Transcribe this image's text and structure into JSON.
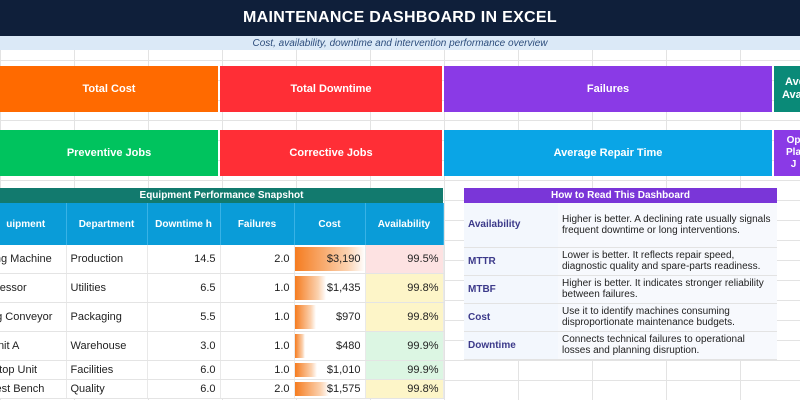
{
  "title": "MAINTENANCE DASHBOARD IN EXCEL",
  "subtitle": "Cost, availability, downtime and intervention performance overview",
  "colors": {
    "title_bg": "#0f1f3a",
    "subtitle_bg": "#dbe9f7",
    "kpi_orange": "#ff6a00",
    "kpi_red": "#ff2e36",
    "kpi_purple": "#8a3ae6",
    "kpi_green": "#00c35e",
    "kpi_blue": "#0aa5e6",
    "kpi_teal": "#0a8a78",
    "table_header": "#0a9cd8",
    "panel_equipment": "#127a6e",
    "panel_guide": "#7a36d8"
  },
  "kpis_row1": [
    "Total Cost",
    "Total Downtime",
    "Failures",
    "Ave\nAvail"
  ],
  "kpis_row2": [
    "Preventive Jobs",
    "Corrective Jobs",
    "Average Repair Time",
    "Op\nPla\nJ"
  ],
  "equipment_panel": {
    "title": "Equipment Performance Snapshot",
    "headers": [
      "uipment",
      "Department",
      "Downtime h",
      "Failures",
      "Cost",
      "Availability"
    ],
    "rows": [
      {
        "equipment": "ling Machine",
        "department": "Production",
        "downtime": "14.5",
        "failures": "2.0",
        "cost": "$3,190",
        "availability": "99.5%"
      },
      {
        "equipment": "pressor",
        "department": "Utilities",
        "downtime": "6.5",
        "failures": "1.0",
        "cost": "$1,435",
        "availability": "99.8%"
      },
      {
        "equipment": "ng Conveyor",
        "department": "Packaging",
        "downtime": "5.5",
        "failures": "1.0",
        "cost": "$970",
        "availability": "99.8%"
      },
      {
        "equipment": "Unit A",
        "department": "Warehouse",
        "downtime": "3.0",
        "failures": "1.0",
        "cost": "$480",
        "availability": "99.9%"
      },
      {
        "equipment": "oftop Unit",
        "department": "Facilities",
        "downtime": "6.0",
        "failures": "1.0",
        "cost": "$1,010",
        "availability": "99.9%"
      },
      {
        "equipment": "Test Bench",
        "department": "Quality",
        "downtime": "6.0",
        "failures": "2.0",
        "cost": "$1,575",
        "availability": "99.8%"
      }
    ]
  },
  "guide_panel": {
    "title": "How to Read This Dashboard",
    "rows": [
      {
        "term": "Availability",
        "desc": "Higher is better. A declining rate usually signals frequent downtime or long interventions."
      },
      {
        "term": "MTTR",
        "desc": "Lower is better. It reflects repair speed, diagnostic quality and spare-parts readiness."
      },
      {
        "term": "MTBF",
        "desc": "Higher is better. It indicates stronger reliability between failures."
      },
      {
        "term": "Cost",
        "desc": "Use it to identify machines consuming disproportionate maintenance budgets."
      },
      {
        "term": "Downtime",
        "desc": "Connects technical failures to operational losses and planning disruption."
      }
    ]
  },
  "cost_fill": [
    1.0,
    0.45,
    0.3,
    0.15,
    0.32,
    0.49
  ],
  "availability_colors": [
    "#fde2e2",
    "#fdf5c8",
    "#fdf5c8",
    "#dcf6e3",
    "#dcf6e3",
    "#fdf5c8"
  ]
}
